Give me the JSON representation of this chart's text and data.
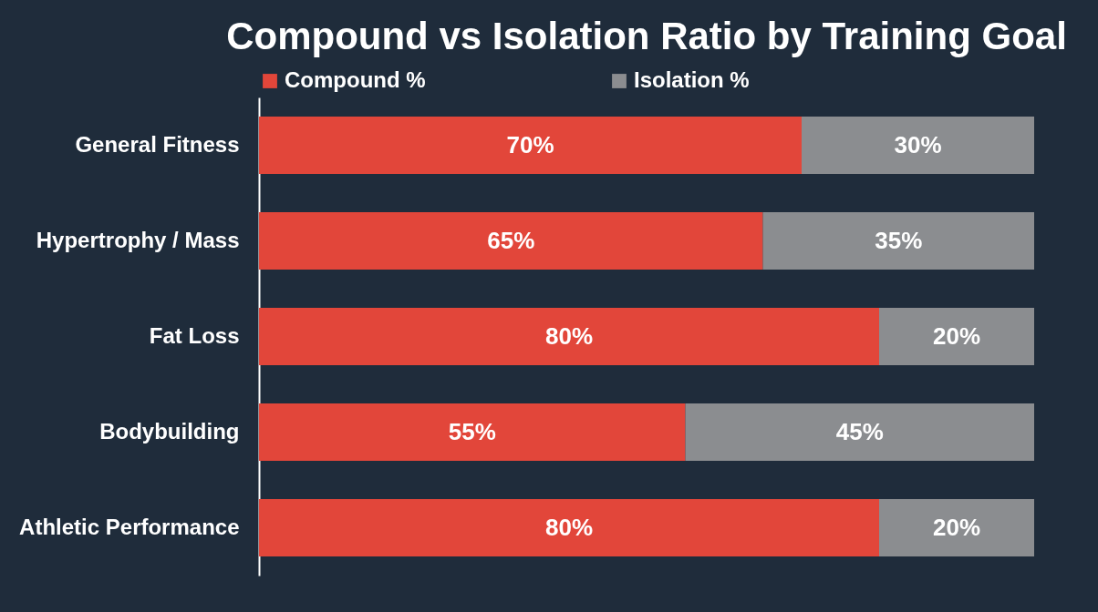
{
  "chart_data": {
    "type": "bar",
    "orientation": "horizontal",
    "stacked": true,
    "title": "Compound vs Isolation Ratio by Training Goal",
    "categories": [
      "General Fitness",
      "Hypertrophy / Mass",
      "Fat Loss",
      "Bodybuilding",
      "Athletic Performance"
    ],
    "series": [
      {
        "name": "Compound %",
        "color": "#e2463a",
        "values": [
          70,
          65,
          80,
          55,
          80
        ],
        "value_labels": [
          "70%",
          "65%",
          "80%",
          "55%",
          "80%"
        ]
      },
      {
        "name": "Isolation %",
        "color": "#8b8d90",
        "values": [
          30,
          35,
          20,
          45,
          20
        ],
        "value_labels": [
          "30%",
          "35%",
          "20%",
          "45%",
          "20%"
        ]
      }
    ],
    "legend": "top",
    "grid": false,
    "tick_labels": "y"
  }
}
